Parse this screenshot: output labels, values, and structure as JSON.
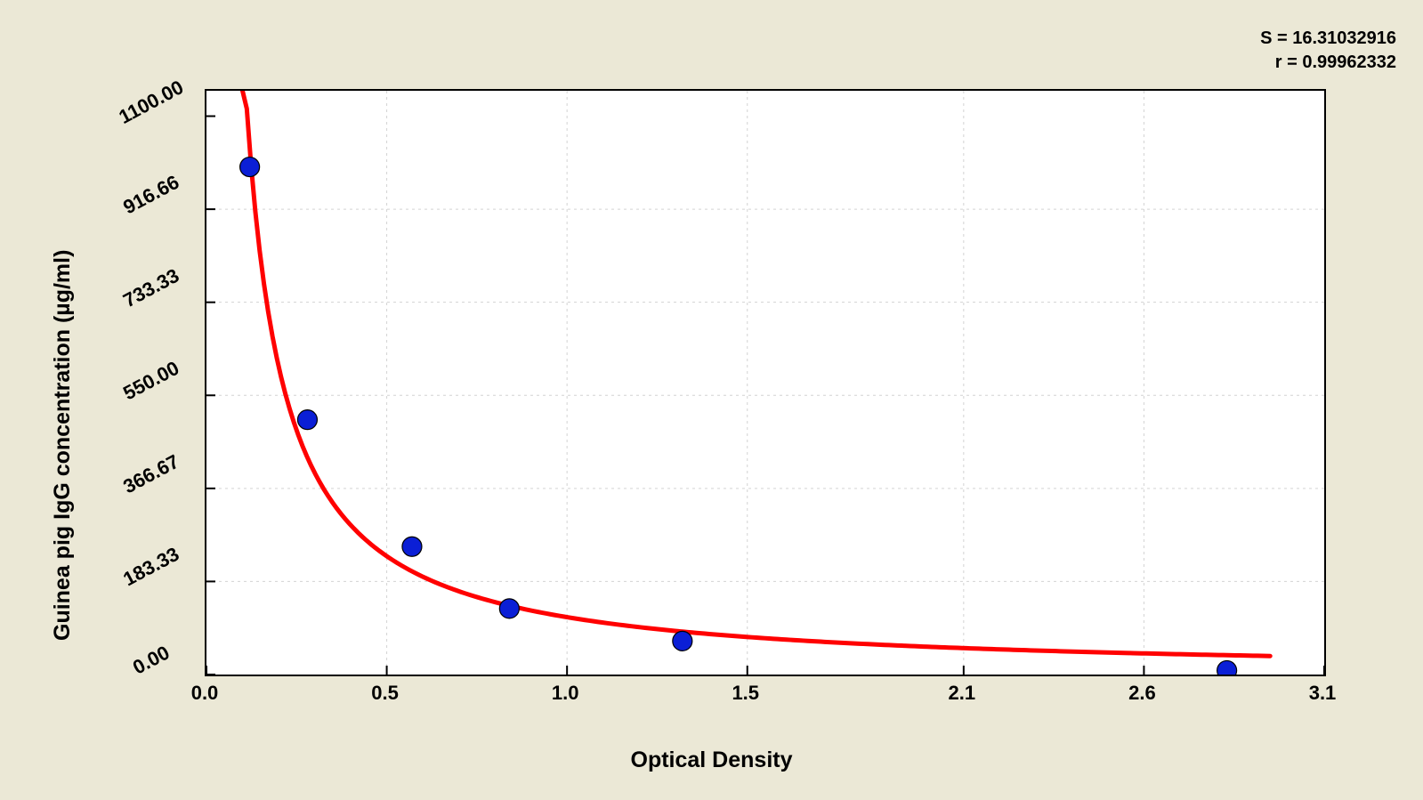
{
  "chart": {
    "type": "scatter-with-fit",
    "background_color": "#ebe8d6",
    "plot_background_color": "#ffffff",
    "plot_border_color": "#000000",
    "grid_color": "#d3d3d3",
    "grid_dash": "3,4",
    "stats": {
      "s_label": "S = 16.31032916",
      "r_label": "r = 0.99962332",
      "fontsize": 20,
      "color": "#000000"
    },
    "xaxis": {
      "label": "Optical Density",
      "label_fontsize": 25,
      "min": 0.0,
      "max": 3.1,
      "ticks": [
        0.0,
        0.5,
        1.0,
        1.5,
        2.1,
        2.6,
        3.1
      ],
      "tick_labels": [
        "0.0",
        "0.5",
        "1.0",
        "1.5",
        "2.1",
        "2.6",
        "3.1"
      ],
      "tick_fontsize": 22,
      "tick_fontweight": "bold"
    },
    "yaxis": {
      "label": "Guinea pig IgG concentration (µg/ml)",
      "label_fontsize": 25,
      "min": 0.0,
      "max": 1150.0,
      "ticks": [
        0.0,
        183.33,
        366.67,
        550.0,
        733.33,
        916.66,
        1100.0
      ],
      "tick_labels": [
        "0.00",
        "183.33",
        "366.67",
        "550.00",
        "733.33",
        "916.66",
        "1100.00"
      ],
      "tick_fontsize": 22,
      "tick_fontweight": "bold",
      "tick_rotation_deg": -28
    },
    "points": {
      "marker": "circle",
      "radius": 11,
      "fill": "#0b1fd6",
      "stroke": "#000000",
      "stroke_width": 1.2,
      "data": [
        {
          "x": 0.12,
          "y": 1000.0
        },
        {
          "x": 0.28,
          "y": 502.0
        },
        {
          "x": 0.57,
          "y": 252.0
        },
        {
          "x": 0.84,
          "y": 130.0
        },
        {
          "x": 1.32,
          "y": 66.0
        },
        {
          "x": 2.83,
          "y": 8.0
        }
      ]
    },
    "fit_curve": {
      "color": "#ff0000",
      "width": 5,
      "type": "power",
      "x_start": 0.1,
      "x_end": 2.95,
      "samples": 240,
      "A": 113.0,
      "b": 1.045
    }
  }
}
